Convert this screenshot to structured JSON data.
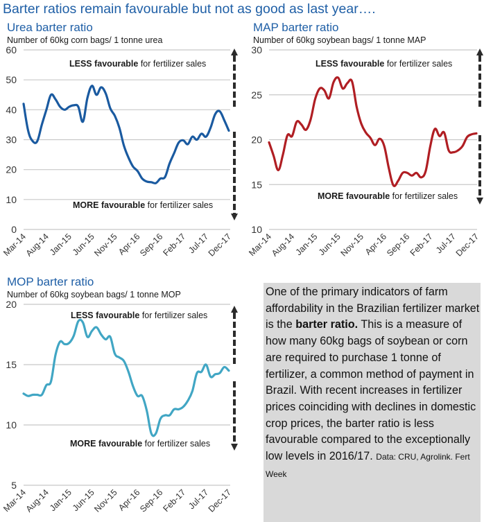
{
  "page_title": "Barter ratios remain favourable but not as good as last year….",
  "annotations": {
    "less_bold": "LESS favourable",
    "less_rest": " for fertilizer sales",
    "more_bold": "MORE favourable",
    "more_rest": " for fertilizer sales"
  },
  "info_box": {
    "text_before": "One of the primary indicators of farm affordability in the Brazilian fertilizer market is the ",
    "text_bold": "barter ratio.",
    "text_after": " This is a measure of how many 60kg bags of soybean or corn are required to purchase 1 tonne of fertilizer, a common method of payment in Brazil. With recent increases in fertilizer prices coinciding with declines in domestic crop prices, the barter ratio is less favourable compared to the exceptionally low levels in 2016/17. ",
    "source": "Data: CRU, Agrolink. Fert Week"
  },
  "chart_data": [
    {
      "id": "urea",
      "type": "line",
      "title": "Urea barter ratio",
      "subtitle": "Number of 60kg corn bags/ 1 tonne urea",
      "xlabel": "",
      "ylabel": "Number of 60kg corn bags/ 1 tonne urea",
      "ylim": [
        0,
        60
      ],
      "yticks": [
        0,
        10,
        20,
        30,
        40,
        50,
        60
      ],
      "grid": true,
      "line_color": "#1a5aa0",
      "x_start": "Mar-14",
      "x_end": "Dec-17",
      "xticks": [
        "Mar-14",
        "Aug-14",
        "Jan-15",
        "Jun-15",
        "Nov-15",
        "Apr-16",
        "Sep-16",
        "Feb-17",
        "Jul-17",
        "Dec-17"
      ],
      "values": [
        42,
        33,
        29.5,
        29.5,
        35,
        40,
        45,
        43.5,
        41,
        40,
        41,
        41.5,
        41,
        36,
        44,
        48,
        45,
        47.5,
        45.5,
        40.5,
        38,
        34,
        28,
        24,
        21,
        19.5,
        17,
        16,
        15.8,
        15.5,
        17,
        17.5,
        22,
        25.5,
        29,
        29.8,
        28.5,
        31,
        30,
        32,
        31,
        34,
        38.5,
        39.5,
        36.5,
        33
      ]
    },
    {
      "id": "map",
      "type": "line",
      "title": "MAP barter ratio",
      "subtitle": "Number of 60kg soybean bags/ 1 tonne MAP",
      "xlabel": "",
      "ylabel": "Number of 60kg soybean bags/ 1 tonne MAP",
      "ylim": [
        10,
        30
      ],
      "yticks": [
        10,
        15,
        20,
        25,
        30
      ],
      "grid": true,
      "line_color": "#b01e23",
      "x_start": "Mar-14",
      "x_end": "Dec-17",
      "xticks": [
        "Mar-14",
        "Aug-14",
        "Jan-15",
        "Jun-15",
        "Nov-15",
        "Apr-16",
        "Sep-16",
        "Feb-17",
        "Jul-17",
        "Dec-17"
      ],
      "values": [
        19.7,
        18.2,
        16.6,
        18.3,
        20.5,
        20.4,
        22,
        21.7,
        21.1,
        22.2,
        24.5,
        25.7,
        25.5,
        24.6,
        26.4,
        26.9,
        25.7,
        26.3,
        26.5,
        23.7,
        21.8,
        20.8,
        20.2,
        19.4,
        20.1,
        19.3,
        16.8,
        14.9,
        15.4,
        16.3,
        16.3,
        16,
        16.3,
        15.8,
        16.5,
        19.3,
        21.2,
        20.4,
        20.8,
        18.8,
        18.6,
        18.8,
        19.3,
        20.3,
        20.6,
        20.7
      ]
    },
    {
      "id": "mop",
      "type": "line",
      "title": "MOP barter ratio",
      "subtitle": "Number of 60kg soybean bags/ 1 tonne MOP",
      "xlabel": "",
      "ylabel": "Number of 60kg soybean bags/ 1 tonne MOP",
      "ylim": [
        5,
        20
      ],
      "yticks": [
        5,
        10,
        15,
        20
      ],
      "grid": true,
      "line_color": "#41a6c4",
      "x_start": "Mar-14",
      "x_end": "Dec-17",
      "xticks": [
        "Mar-14",
        "Aug-14",
        "Jan-15",
        "Jun-15",
        "Nov-15",
        "Apr-16",
        "Sep-16",
        "Feb-17",
        "Jul-17",
        "Dec-17"
      ],
      "values": [
        12.6,
        12.4,
        12.5,
        12.5,
        12.5,
        13.3,
        13.6,
        15.8,
        16.9,
        16.7,
        16.8,
        17.4,
        18.6,
        18.5,
        17.3,
        17.8,
        18.1,
        17.5,
        17.1,
        17.3,
        15.9,
        15.6,
        15.3,
        14.4,
        13.2,
        12.4,
        12.4,
        11.2,
        9.3,
        9.3,
        10.5,
        10.8,
        10.8,
        11.3,
        11.3,
        11.5,
        12,
        12.8,
        14.3,
        14.4,
        15,
        14,
        14.2,
        14.3,
        14.8,
        14.5
      ]
    }
  ]
}
